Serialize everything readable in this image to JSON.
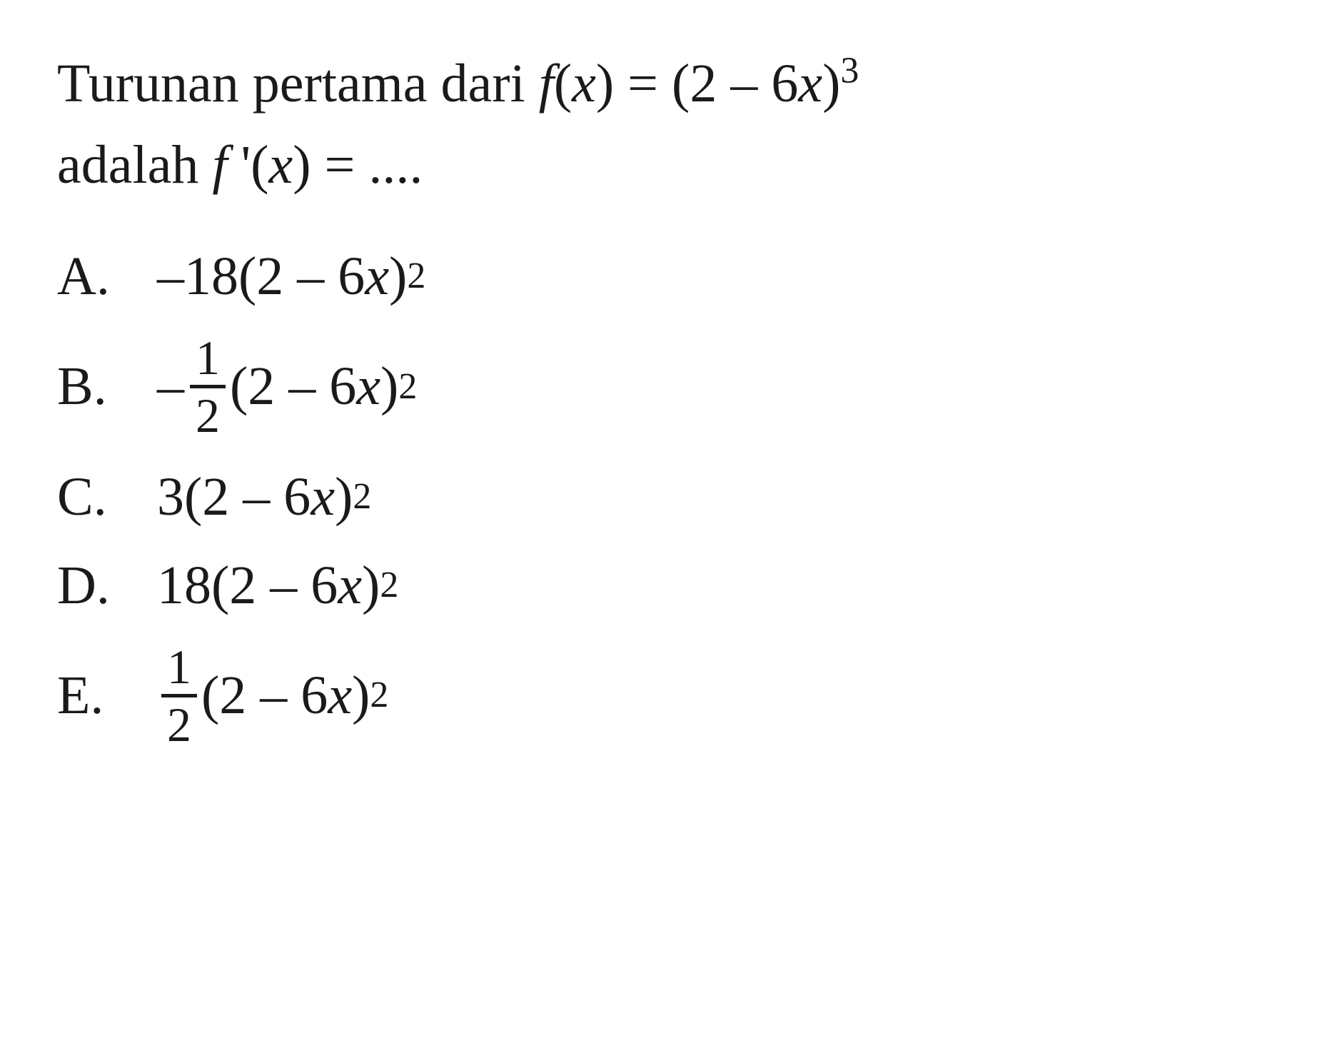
{
  "question": {
    "line1_part1": "Turunan pertama dari ",
    "line1_funcvar": "f",
    "line1_openparen": "(",
    "line1_var": "x",
    "line1_closeparen": ") = (2 – 6",
    "line1_var2": "x",
    "line1_close2": ")",
    "line1_exp": "3",
    "line2_part1": "adalah ",
    "line2_funcvar": "f",
    "line2_prime": " '(",
    "line2_var": "x",
    "line2_end": ") = ...."
  },
  "options": {
    "A": {
      "letter": "A.",
      "prefix": "–18(2 – 6",
      "var": "x",
      "close": ")",
      "exp": "2"
    },
    "B": {
      "letter": "B.",
      "minus": "–",
      "num": "1",
      "den": "2",
      "mid": "(2 – 6",
      "var": "x",
      "close": ")",
      "exp": "2"
    },
    "C": {
      "letter": "C.",
      "prefix": "3(2 – 6",
      "var": "x",
      "close": ")",
      "exp": "2"
    },
    "D": {
      "letter": "D.",
      "prefix": "18(2 – 6",
      "var": "x",
      "close": ")",
      "exp": "2"
    },
    "E": {
      "letter": "E.",
      "num": "1",
      "den": "2",
      "mid": " (2 – 6",
      "var": "x",
      "close": ")",
      "exp": "2"
    }
  },
  "style": {
    "text_color": "#1a1a1a",
    "background_color": "#ffffff",
    "base_fontsize": 76,
    "sup_fontsize": 52,
    "frac_fontsize": 68,
    "font_family": "Times New Roman"
  }
}
